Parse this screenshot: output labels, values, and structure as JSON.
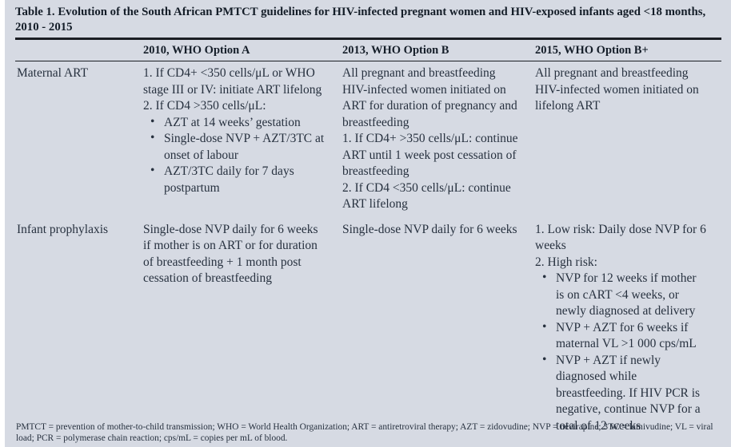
{
  "table": {
    "title": "Table 1. Evolution of the South African PMTCT guidelines for HIV-infected pregnant women and HIV-exposed infants aged <18 months, 2010 - 2015",
    "bullet_char": "•",
    "colors": {
      "panel_background": "#d6dae3",
      "text": "#27313f",
      "rule": "#1b1e24"
    },
    "columns": [
      "",
      "2010, WHO Option A",
      "2013, WHO Option B",
      "2015, WHO Option B+"
    ],
    "rows": [
      {
        "label": "Maternal ART",
        "cells": [
          [
            {
              "type": "p",
              "text": "1. If CD4+ <350 cells/μL or WHO stage III or IV: initiate ART lifelong"
            },
            {
              "type": "p",
              "text": "2. If CD4 >350 cells/μL:"
            },
            {
              "type": "b",
              "text": "AZT at 14 weeks’ gestation"
            },
            {
              "type": "b",
              "text": "Single-dose NVP + AZT/3TC at onset of labour"
            },
            {
              "type": "b",
              "text": "AZT/3TC daily for 7 days postpartum"
            }
          ],
          [
            {
              "type": "p",
              "text": "All pregnant and breastfeeding HIV-infected women initiated on ART for duration of pregnancy and breastfeeding"
            },
            {
              "type": "p",
              "text": "1. If CD4+ >350 cells/μL: continue ART until 1 week post cessation of breastfeeding"
            },
            {
              "type": "p",
              "text": "2. If CD4 <350 cells/μL: continue ART lifelong"
            }
          ],
          [
            {
              "type": "p",
              "text": "All pregnant and breastfeeding HIV-infected women initiated on lifelong ART"
            }
          ]
        ]
      },
      {
        "label": "Infant prophylaxis",
        "cells": [
          [
            {
              "type": "p",
              "text": "Single-dose NVP daily for 6 weeks if mother is on ART or for duration of breastfeeding + 1 month post cessation of breastfeeding"
            }
          ],
          [
            {
              "type": "p",
              "text": "Single-dose NVP daily for 6 weeks"
            }
          ],
          [
            {
              "type": "p",
              "text": "1. Low risk: Daily dose NVP for 6 weeks"
            },
            {
              "type": "p",
              "text": "2. High risk:"
            },
            {
              "type": "b",
              "text": "NVP for 12 weeks if mother is on cART <4 weeks, or newly diagnosed at delivery"
            },
            {
              "type": "b",
              "text": "NVP + AZT for 6 weeks if maternal VL >1 000 cps/mL"
            },
            {
              "type": "b",
              "text": "NVP + AZT if newly diagnosed while breastfeeding. If HIV PCR is negative, continue NVP for a total of 12 weeks"
            }
          ]
        ]
      }
    ],
    "footnote": "PMTCT = prevention of mother-to-child transmission; WHO = World Health Organization; ART = antiretroviral therapy; AZT = zidovudine; NVP = nevirapine; 3TC = lamivudine; VL = viral load; PCR = polymerase chain reaction; cps/mL = copies per mL of blood."
  }
}
